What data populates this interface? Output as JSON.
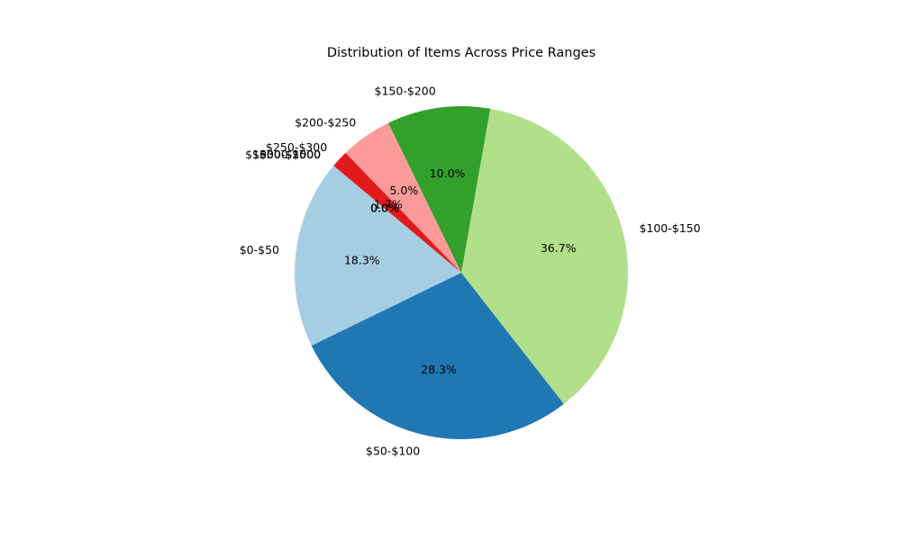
{
  "chart_data": {
    "type": "pie",
    "title": "Distribution of Items Across Price Ranges",
    "start_angle_deg": 140,
    "direction": "counterclockwise",
    "slices": [
      {
        "label": "$0-$50",
        "percent_label": "18.3%",
        "value": 18.333,
        "color": "#a6cee3"
      },
      {
        "label": "$50-$100",
        "percent_label": "28.3%",
        "value": 28.333,
        "color": "#1f78b4"
      },
      {
        "label": "$100-$150",
        "percent_label": "36.7%",
        "value": 36.667,
        "color": "#b2df8a"
      },
      {
        "label": "$150-$200",
        "percent_label": "10.0%",
        "value": 10.0,
        "color": "#33a02c"
      },
      {
        "label": "$200-$250",
        "percent_label": "5.0%",
        "value": 5.0,
        "color": "#fb9a99"
      },
      {
        "label": "$250-$300",
        "percent_label": "1.7%",
        "value": 1.667,
        "color": "#e31a1c"
      },
      {
        "label": "$300-$500",
        "percent_label": "0.0%",
        "value": 0.0,
        "color": "#fdbf6f"
      },
      {
        "label": "$500-$1000",
        "percent_label": "0.0%",
        "value": 0.0,
        "color": "#ff7f00"
      },
      {
        "label": "$1000-$2000",
        "percent_label": "0.0%",
        "value": 0.0,
        "color": "#cab2d6"
      }
    ]
  }
}
